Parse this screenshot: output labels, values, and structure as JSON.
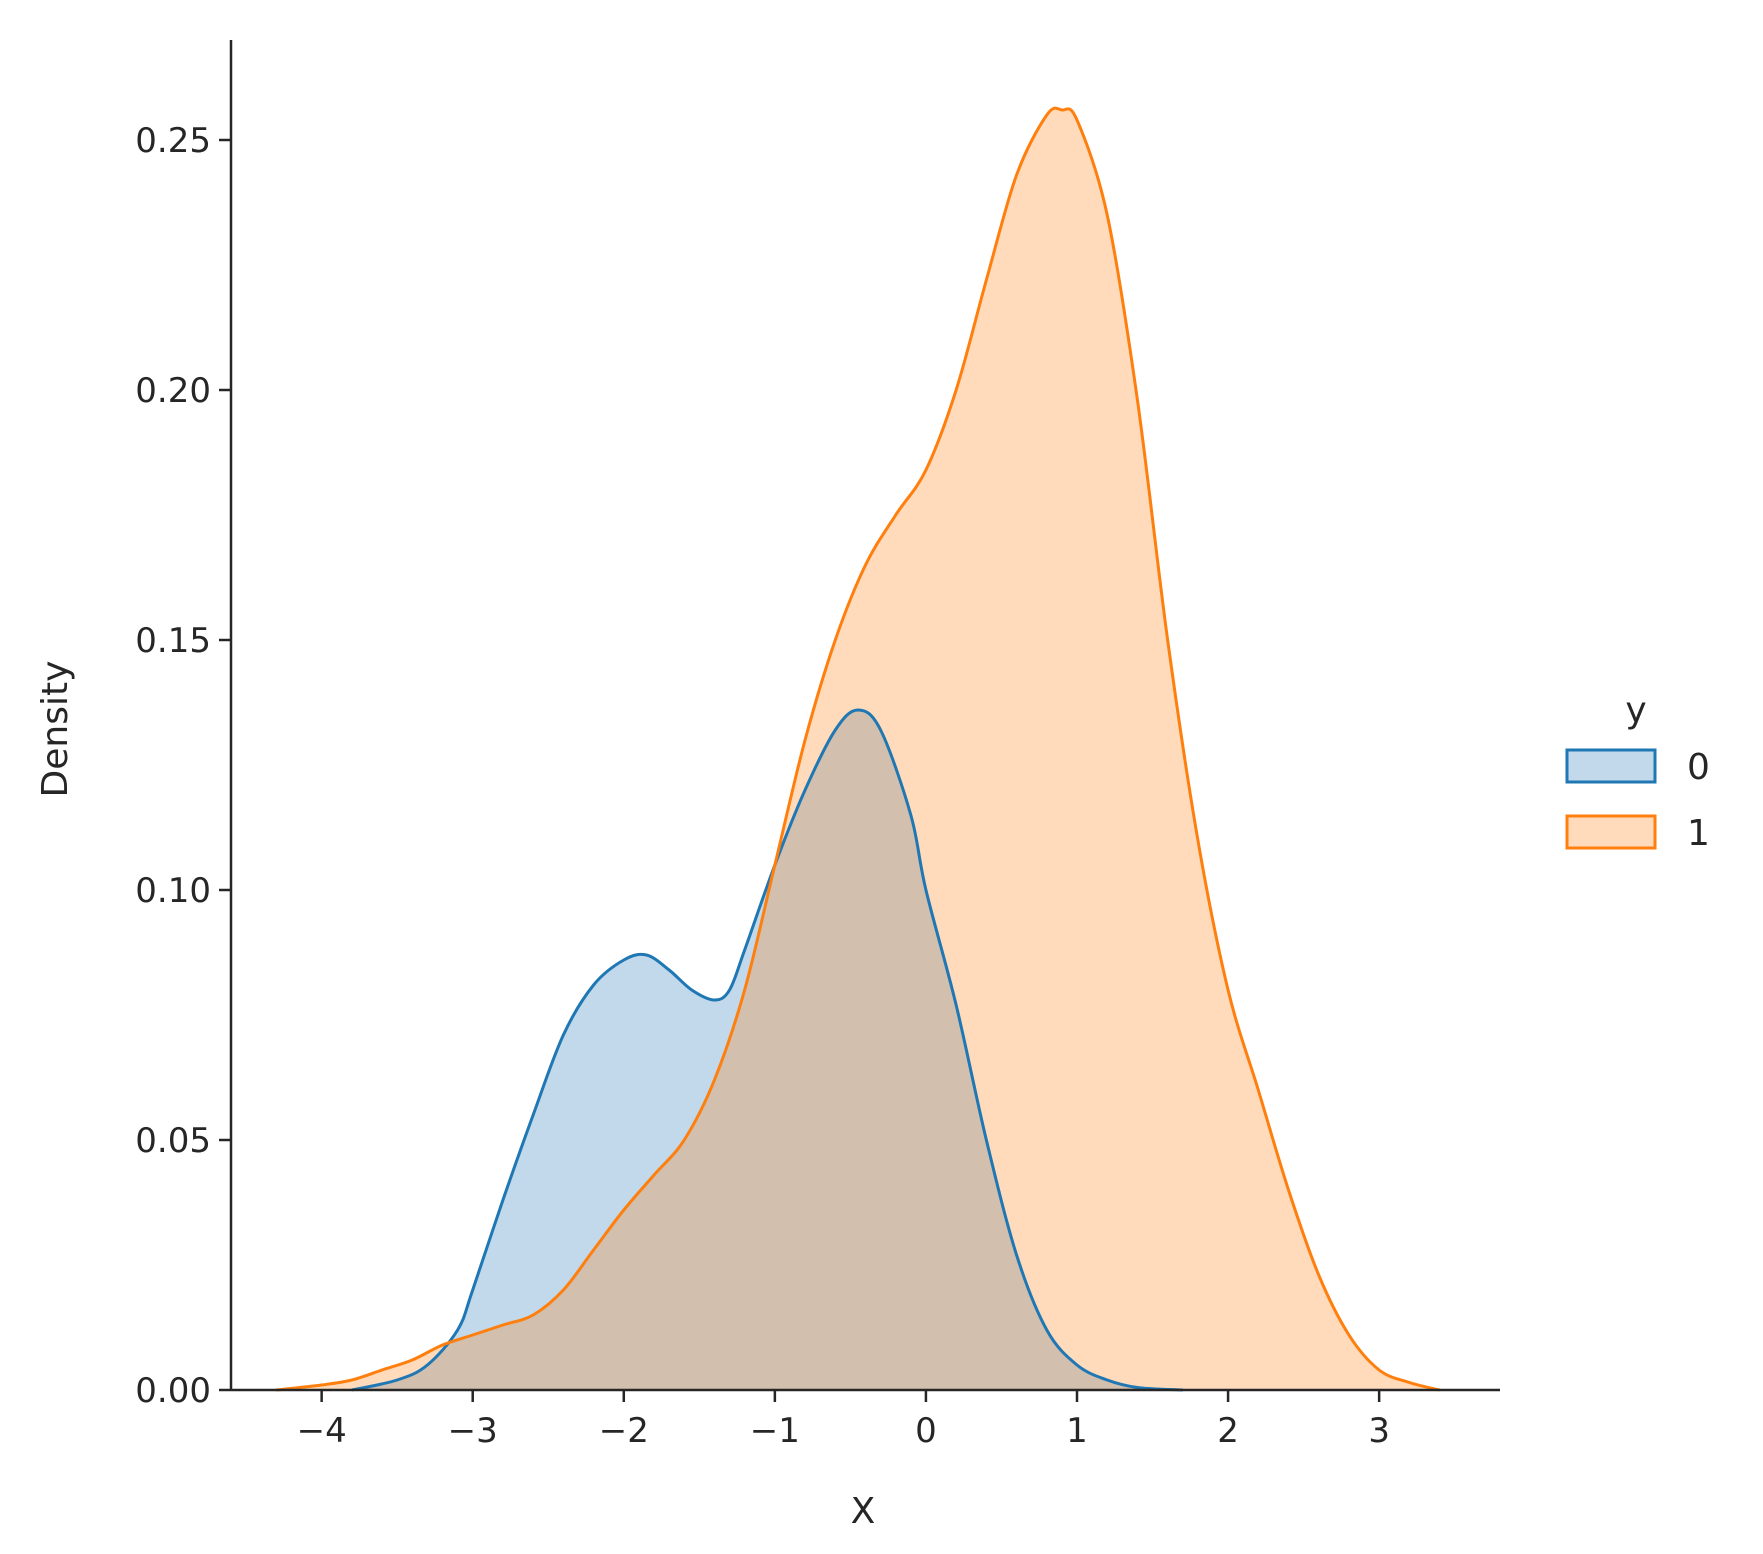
{
  "chart_data": {
    "type": "area",
    "title": "",
    "xlabel": "X",
    "ylabel": "Density",
    "xlim": [
      -4.6,
      3.8
    ],
    "ylim": [
      0,
      0.27
    ],
    "x_ticks": [
      -4,
      -3,
      -2,
      -1,
      0,
      1,
      2,
      3
    ],
    "x_tick_labels": [
      "−4",
      "−3",
      "−2",
      "−1",
      "0",
      "1",
      "2",
      "3"
    ],
    "y_ticks": [
      0,
      0.05,
      0.1,
      0.15,
      0.2,
      0.25
    ],
    "y_tick_labels": [
      "0.00",
      "0.05",
      "0.10",
      "0.15",
      "0.20",
      "0.25"
    ],
    "grid": false,
    "legend": {
      "title": "y",
      "placement": "right"
    },
    "series": [
      {
        "name": "0",
        "color": "#1f77b4",
        "fill": "#1f77b4",
        "fill_opacity": 0.28,
        "x": [
          -3.8,
          -3.5,
          -3.3,
          -3.1,
          -3.0,
          -2.8,
          -2.6,
          -2.4,
          -2.2,
          -2.0,
          -1.85,
          -1.7,
          -1.55,
          -1.4,
          -1.3,
          -1.2,
          -1.0,
          -0.8,
          -0.6,
          -0.45,
          -0.3,
          -0.1,
          0.0,
          0.2,
          0.4,
          0.6,
          0.8,
          1.0,
          1.2,
          1.4,
          1.7
        ],
        "y": [
          0.0,
          0.002,
          0.005,
          0.012,
          0.02,
          0.038,
          0.055,
          0.071,
          0.081,
          0.086,
          0.087,
          0.084,
          0.08,
          0.078,
          0.08,
          0.088,
          0.105,
          0.12,
          0.132,
          0.136,
          0.132,
          0.115,
          0.1,
          0.077,
          0.05,
          0.027,
          0.012,
          0.005,
          0.002,
          0.0005,
          0.0
        ]
      },
      {
        "name": "1",
        "color": "#ff7f0e",
        "fill": "#ff7f0e",
        "fill_opacity": 0.28,
        "x": [
          -4.3,
          -4.0,
          -3.8,
          -3.6,
          -3.4,
          -3.2,
          -3.0,
          -2.8,
          -2.6,
          -2.4,
          -2.2,
          -2.0,
          -1.8,
          -1.6,
          -1.4,
          -1.2,
          -1.0,
          -0.8,
          -0.6,
          -0.4,
          -0.2,
          0.0,
          0.2,
          0.4,
          0.6,
          0.8,
          0.9,
          1.0,
          1.2,
          1.4,
          1.6,
          1.8,
          2.0,
          2.2,
          2.4,
          2.6,
          2.8,
          3.0,
          3.2,
          3.4
        ],
        "y": [
          0.0,
          0.001,
          0.002,
          0.004,
          0.006,
          0.009,
          0.011,
          0.013,
          0.015,
          0.02,
          0.028,
          0.036,
          0.043,
          0.05,
          0.062,
          0.08,
          0.105,
          0.13,
          0.15,
          0.165,
          0.175,
          0.184,
          0.2,
          0.222,
          0.243,
          0.255,
          0.256,
          0.254,
          0.235,
          0.198,
          0.15,
          0.11,
          0.08,
          0.06,
          0.04,
          0.023,
          0.011,
          0.004,
          0.0015,
          0.0
        ]
      }
    ]
  }
}
